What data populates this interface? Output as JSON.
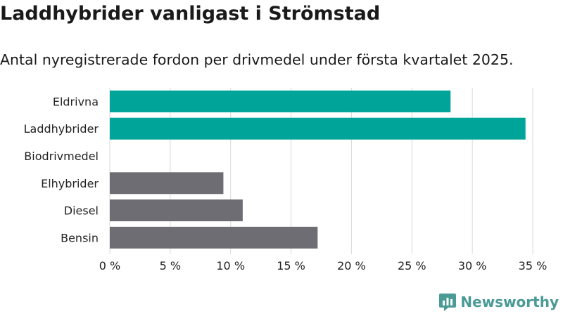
{
  "title": "Laddhybrider vanligast i Strömstad",
  "subtitle": "Antal nyregistrerade fordon per drivmedel under första kvartalet 2025.",
  "brand": "Newsworthy",
  "colors": {
    "highlight": "#00a499",
    "other": "#6e6d73",
    "grid": "#d9d9d9",
    "brand": "#4a9a95"
  },
  "chart_data": {
    "type": "bar",
    "orientation": "horizontal",
    "categories": [
      "Eldrivna",
      "Laddhybrider",
      "Biodrivmedel",
      "Elhybrider",
      "Diesel",
      "Bensin"
    ],
    "values": [
      28.2,
      34.4,
      0,
      9.4,
      11.0,
      17.2
    ],
    "bar_colors": [
      "#00a499",
      "#00a499",
      "#6e6d73",
      "#6e6d73",
      "#6e6d73",
      "#6e6d73"
    ],
    "xlim": [
      0,
      35
    ],
    "xticks": [
      0,
      5,
      10,
      15,
      20,
      25,
      30,
      35
    ],
    "xtick_labels": [
      "0 %",
      "5 %",
      "10 %",
      "15 %",
      "20 %",
      "25 %",
      "30 %",
      "35 %"
    ],
    "grid": "vertical",
    "xlabel": "",
    "ylabel": ""
  }
}
